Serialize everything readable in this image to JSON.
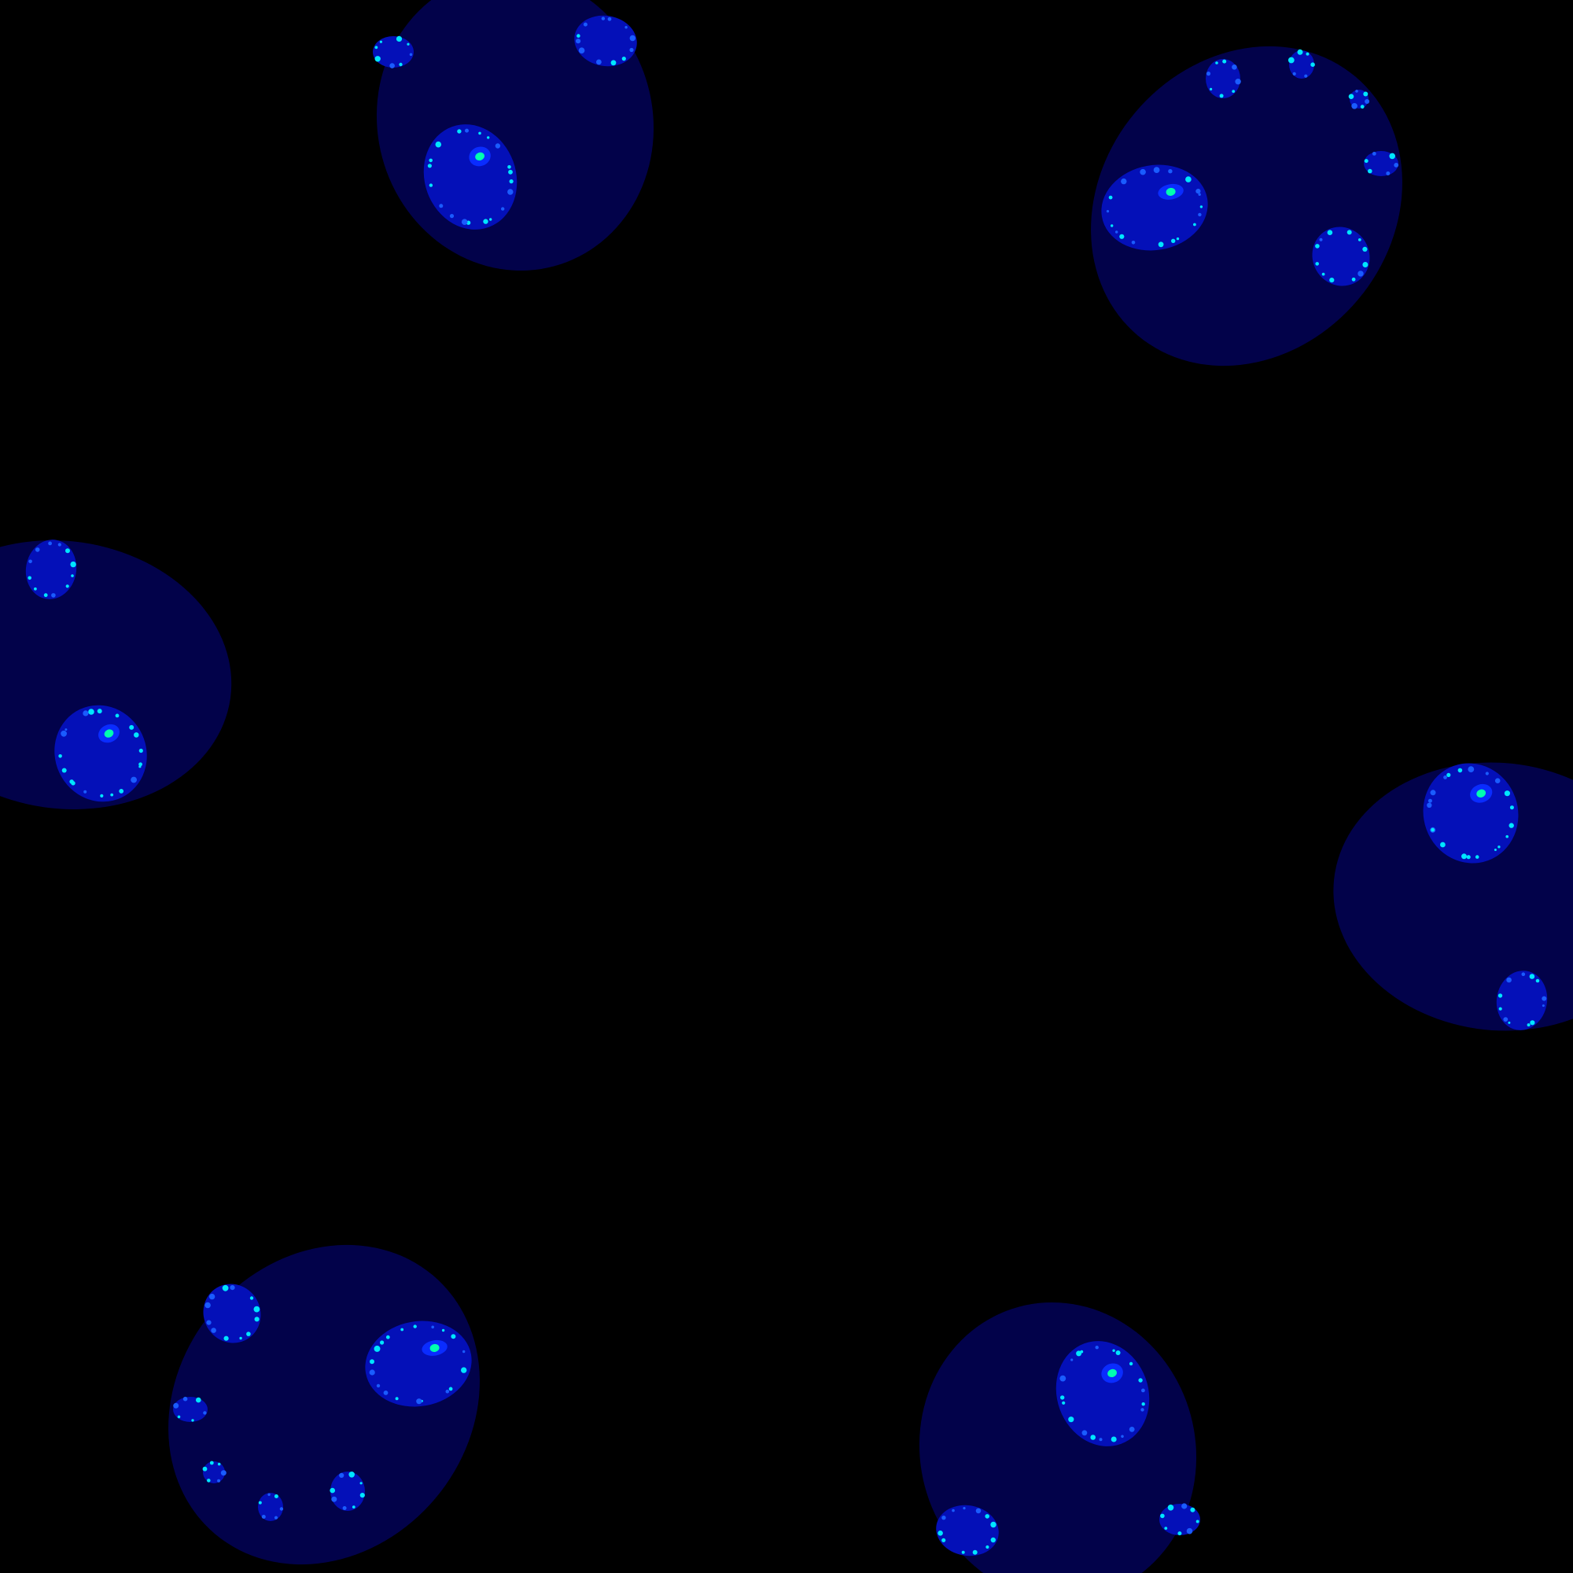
{
  "scene": {
    "subject": "fractal-blob-clusters",
    "colors": {
      "background": "#000000",
      "outer_blob": "#02024a",
      "inner_blob": "#0410b8",
      "dot_blue": "#1a5cff",
      "dot_cyan": "#00e6ff",
      "dot_green": "#00ffb0"
    }
  }
}
